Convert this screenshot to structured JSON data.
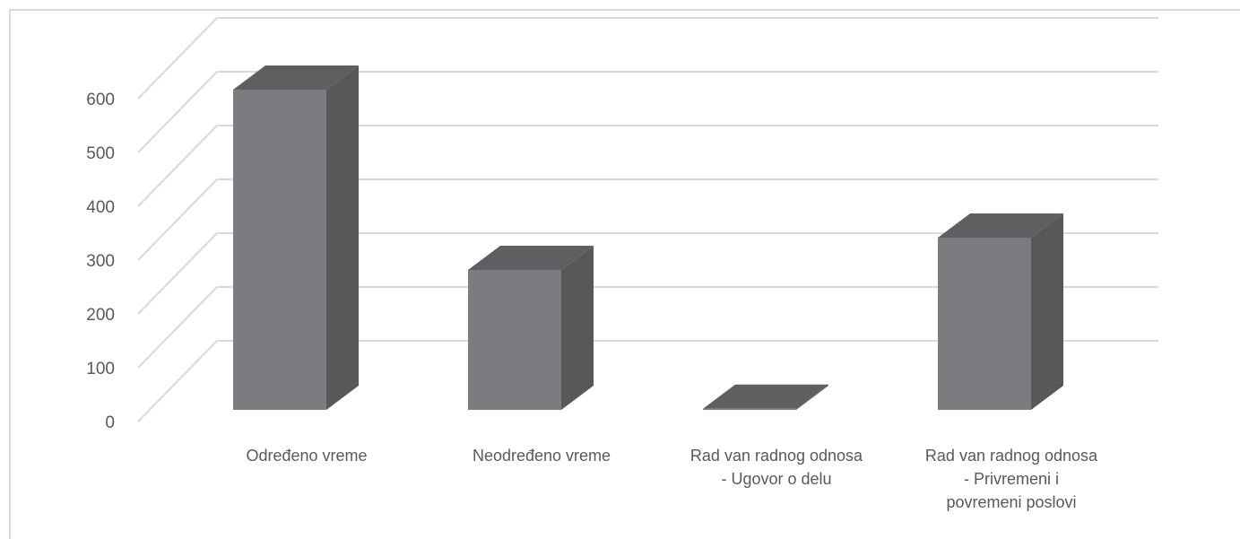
{
  "chart_data": {
    "type": "bar",
    "style": "3d-column",
    "title": "",
    "xlabel": "",
    "ylabel": "",
    "categories": [
      [
        "Određeno vreme"
      ],
      [
        "Neodređeno vreme"
      ],
      [
        "Rad van radnog odnosa",
        "- Ugovor o delu"
      ],
      [
        "Rad van radnog odnosa",
        "- Privremeni i",
        "povremeni poslovi"
      ]
    ],
    "values": [
      595,
      260,
      2,
      320
    ],
    "ylim": [
      0,
      600
    ],
    "yticks": [
      "0",
      "100",
      "200",
      "300",
      "400",
      "500",
      "600"
    ],
    "grid": true,
    "legend": "none",
    "colors": {
      "bar_front": "#7b7c80",
      "bar_top": "#5f5f61",
      "bar_side": "#58585a",
      "grid": "#d9d9d9",
      "label": "#595959"
    }
  }
}
